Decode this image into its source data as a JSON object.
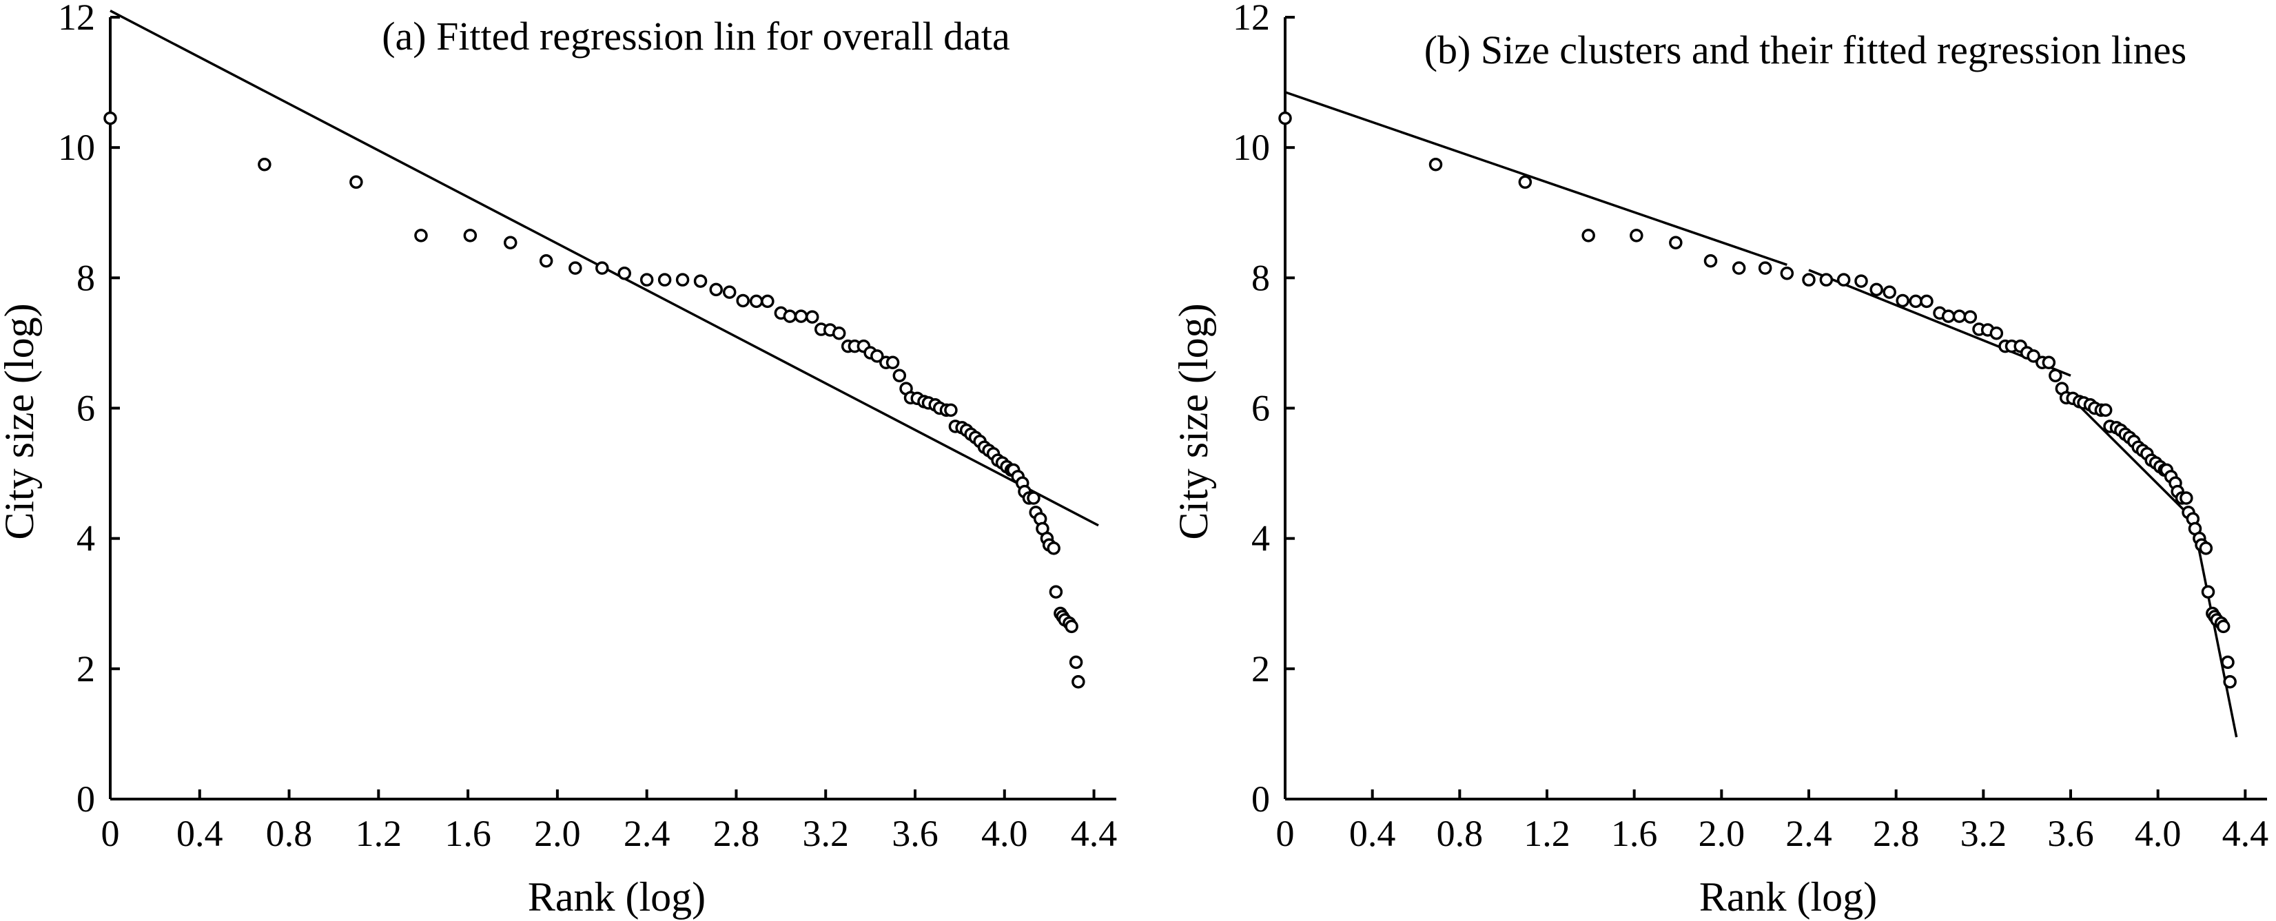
{
  "chart_data": [
    {
      "type": "scatter",
      "title": "(a) Fitted regression lin for overall data",
      "xlabel": "Rank (log)",
      "ylabel": "City size (log)",
      "xlim": [
        0,
        4.5
      ],
      "ylim": [
        0,
        12
      ],
      "xticks": [
        "0",
        "0.4",
        "0.8",
        "1.2",
        "1.6",
        "2.0",
        "2.4",
        "2.8",
        "3.2",
        "3.6",
        "4.0",
        "4.4"
      ],
      "yticks": [
        "0",
        "2",
        "4",
        "6",
        "8",
        "10",
        "12"
      ],
      "grid": false,
      "points": {
        "x": [
          0.0,
          0.69,
          1.1,
          1.39,
          1.61,
          1.79,
          1.95,
          2.08,
          2.2,
          2.3,
          2.4,
          2.48,
          2.56,
          2.64,
          2.71,
          2.77,
          2.83,
          2.89,
          2.94,
          3.0,
          3.04,
          3.09,
          3.14,
          3.18,
          3.22,
          3.26,
          3.3,
          3.33,
          3.37,
          3.4,
          3.43,
          3.47,
          3.5,
          3.53,
          3.56,
          3.58,
          3.61,
          3.64,
          3.66,
          3.69,
          3.71,
          3.74,
          3.76,
          3.78,
          3.81,
          3.83,
          3.85,
          3.87,
          3.89,
          3.91,
          3.93,
          3.95,
          3.97,
          3.99,
          4.01,
          4.03,
          4.04,
          4.06,
          4.08,
          4.09,
          4.11,
          4.13,
          4.14,
          4.16,
          4.17,
          4.19,
          4.2,
          4.22,
          4.23,
          4.25,
          4.26,
          4.27,
          4.29,
          4.3,
          4.32,
          4.33
        ],
        "y": [
          10.45,
          9.74,
          9.47,
          8.65,
          8.65,
          8.54,
          8.26,
          8.15,
          8.15,
          8.07,
          7.97,
          7.97,
          7.97,
          7.95,
          7.82,
          7.78,
          7.65,
          7.64,
          7.64,
          7.46,
          7.41,
          7.41,
          7.4,
          7.21,
          7.2,
          7.15,
          6.95,
          6.95,
          6.95,
          6.85,
          6.8,
          6.7,
          6.7,
          6.5,
          6.3,
          6.16,
          6.15,
          6.1,
          6.08,
          6.05,
          6.0,
          5.97,
          5.97,
          5.72,
          5.7,
          5.66,
          5.6,
          5.55,
          5.49,
          5.4,
          5.35,
          5.3,
          5.2,
          5.16,
          5.1,
          5.05,
          5.05,
          4.95,
          4.85,
          4.72,
          4.62,
          4.62,
          4.4,
          4.3,
          4.15,
          4.0,
          3.9,
          3.85,
          3.18,
          2.85,
          2.8,
          2.75,
          2.7,
          2.65,
          2.1,
          1.8
        ]
      },
      "fit_lines": [
        {
          "x": [
            0.0,
            4.42
          ],
          "y": [
            12.1,
            4.2
          ]
        }
      ]
    },
    {
      "type": "scatter",
      "title": "(b) Size clusters and their fitted regression lines",
      "xlabel": "Rank (log)",
      "ylabel": "City size (log)",
      "xlim": [
        0,
        4.5
      ],
      "ylim": [
        0,
        12
      ],
      "xticks": [
        "0",
        "0.4",
        "0.8",
        "1.2",
        "1.6",
        "2.0",
        "2.4",
        "2.8",
        "3.2",
        "3.6",
        "4.0",
        "4.4"
      ],
      "yticks": [
        "0",
        "2",
        "4",
        "6",
        "8",
        "10",
        "12"
      ],
      "grid": false,
      "points": {
        "x": [
          0.0,
          0.69,
          1.1,
          1.39,
          1.61,
          1.79,
          1.95,
          2.08,
          2.2,
          2.3,
          2.4,
          2.48,
          2.56,
          2.64,
          2.71,
          2.77,
          2.83,
          2.89,
          2.94,
          3.0,
          3.04,
          3.09,
          3.14,
          3.18,
          3.22,
          3.26,
          3.3,
          3.33,
          3.37,
          3.4,
          3.43,
          3.47,
          3.5,
          3.53,
          3.56,
          3.58,
          3.61,
          3.64,
          3.66,
          3.69,
          3.71,
          3.74,
          3.76,
          3.78,
          3.81,
          3.83,
          3.85,
          3.87,
          3.89,
          3.91,
          3.93,
          3.95,
          3.97,
          3.99,
          4.01,
          4.03,
          4.04,
          4.06,
          4.08,
          4.09,
          4.11,
          4.13,
          4.14,
          4.16,
          4.17,
          4.19,
          4.2,
          4.22,
          4.23,
          4.25,
          4.26,
          4.27,
          4.29,
          4.3,
          4.32,
          4.33
        ],
        "y": [
          10.45,
          9.74,
          9.47,
          8.65,
          8.65,
          8.54,
          8.26,
          8.15,
          8.15,
          8.07,
          7.97,
          7.97,
          7.97,
          7.95,
          7.82,
          7.78,
          7.65,
          7.64,
          7.64,
          7.46,
          7.41,
          7.41,
          7.4,
          7.21,
          7.2,
          7.15,
          6.95,
          6.95,
          6.95,
          6.85,
          6.8,
          6.7,
          6.7,
          6.5,
          6.3,
          6.16,
          6.15,
          6.1,
          6.08,
          6.05,
          6.0,
          5.97,
          5.97,
          5.72,
          5.7,
          5.66,
          5.6,
          5.55,
          5.49,
          5.4,
          5.35,
          5.3,
          5.2,
          5.16,
          5.1,
          5.05,
          5.05,
          4.95,
          4.85,
          4.72,
          4.62,
          4.62,
          4.4,
          4.3,
          4.15,
          4.0,
          3.9,
          3.85,
          3.18,
          2.85,
          2.8,
          2.75,
          2.7,
          2.65,
          2.1,
          1.8
        ]
      },
      "fit_lines": [
        {
          "x": [
            0.0,
            2.3
          ],
          "y": [
            10.85,
            8.2
          ]
        },
        {
          "x": [
            2.4,
            3.6
          ],
          "y": [
            8.12,
            6.5
          ]
        },
        {
          "x": [
            3.56,
            4.16
          ],
          "y": [
            6.3,
            4.3
          ]
        },
        {
          "x": [
            4.16,
            4.36
          ],
          "y": [
            4.3,
            0.95
          ]
        }
      ]
    }
  ]
}
